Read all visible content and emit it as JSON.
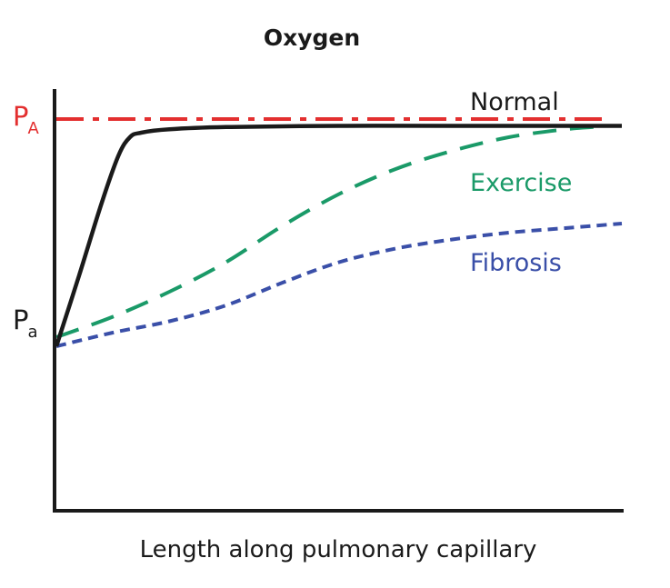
{
  "chart_data": {
    "type": "line",
    "title": "Oxygen",
    "xlabel": "Length along pulmonary capillary",
    "ylabel": "",
    "xlim": [
      0,
      1
    ],
    "y_levels": [
      {
        "key": "P_A",
        "base": "P",
        "sub": "A",
        "value": 1.0,
        "color": "#e32f2f"
      },
      {
        "key": "P_a",
        "base": "P",
        "sub": "a",
        "value": 0.0,
        "color": "#1a1a1a"
      }
    ],
    "series": [
      {
        "name": "Normal",
        "color": "#1a1a1a",
        "style": "solid",
        "x": [
          0.0,
          0.04,
          0.08,
          0.11,
          0.13,
          0.15,
          0.2,
          0.3,
          0.5,
          0.7,
          1.0
        ],
        "y": [
          0.0,
          0.31,
          0.63,
          0.84,
          0.92,
          0.94,
          0.955,
          0.965,
          0.97,
          0.97,
          0.97
        ]
      },
      {
        "name": "Exercise",
        "color": "#1a9a68",
        "style": "long-dash",
        "x": [
          0.0,
          0.1,
          0.2,
          0.3,
          0.4,
          0.5,
          0.6,
          0.7,
          0.8,
          0.9,
          0.95
        ],
        "y": [
          0.04,
          0.13,
          0.24,
          0.37,
          0.53,
          0.67,
          0.78,
          0.86,
          0.92,
          0.955,
          0.965
        ]
      },
      {
        "name": "Fibrosis",
        "color": "#3a4fa8",
        "style": "short-dash",
        "x": [
          0.0,
          0.1,
          0.2,
          0.3,
          0.4,
          0.5,
          0.6,
          0.7,
          0.8,
          0.9,
          1.0
        ],
        "y": [
          0.0,
          0.06,
          0.11,
          0.18,
          0.28,
          0.37,
          0.43,
          0.47,
          0.5,
          0.52,
          0.54
        ]
      }
    ],
    "reference_line": {
      "level": "P_A",
      "color": "#e32f2f",
      "style": "dash-dot"
    }
  }
}
